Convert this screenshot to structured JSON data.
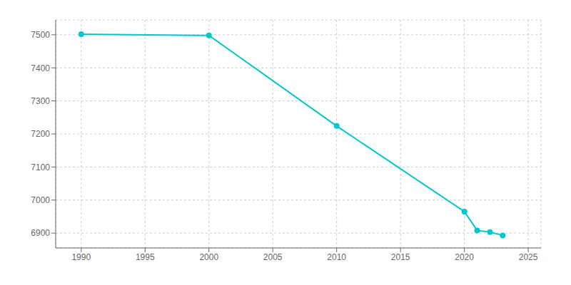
{
  "chart_data": {
    "type": "line",
    "x": [
      1990,
      2000,
      2010,
      2020,
      2021,
      2022,
      2023
    ],
    "values": [
      7502,
      7498,
      7224,
      6965,
      6908,
      6903,
      6893
    ],
    "color": "#00C8C8",
    "marker": "circle",
    "xlim": [
      1988,
      2026
    ],
    "ylim": [
      6855,
      7545
    ],
    "xticks": [
      1990,
      1995,
      2000,
      2005,
      2010,
      2015,
      2020,
      2025
    ],
    "yticks": [
      6900,
      7000,
      7100,
      7200,
      7300,
      7400,
      7500
    ],
    "grid": true
  }
}
